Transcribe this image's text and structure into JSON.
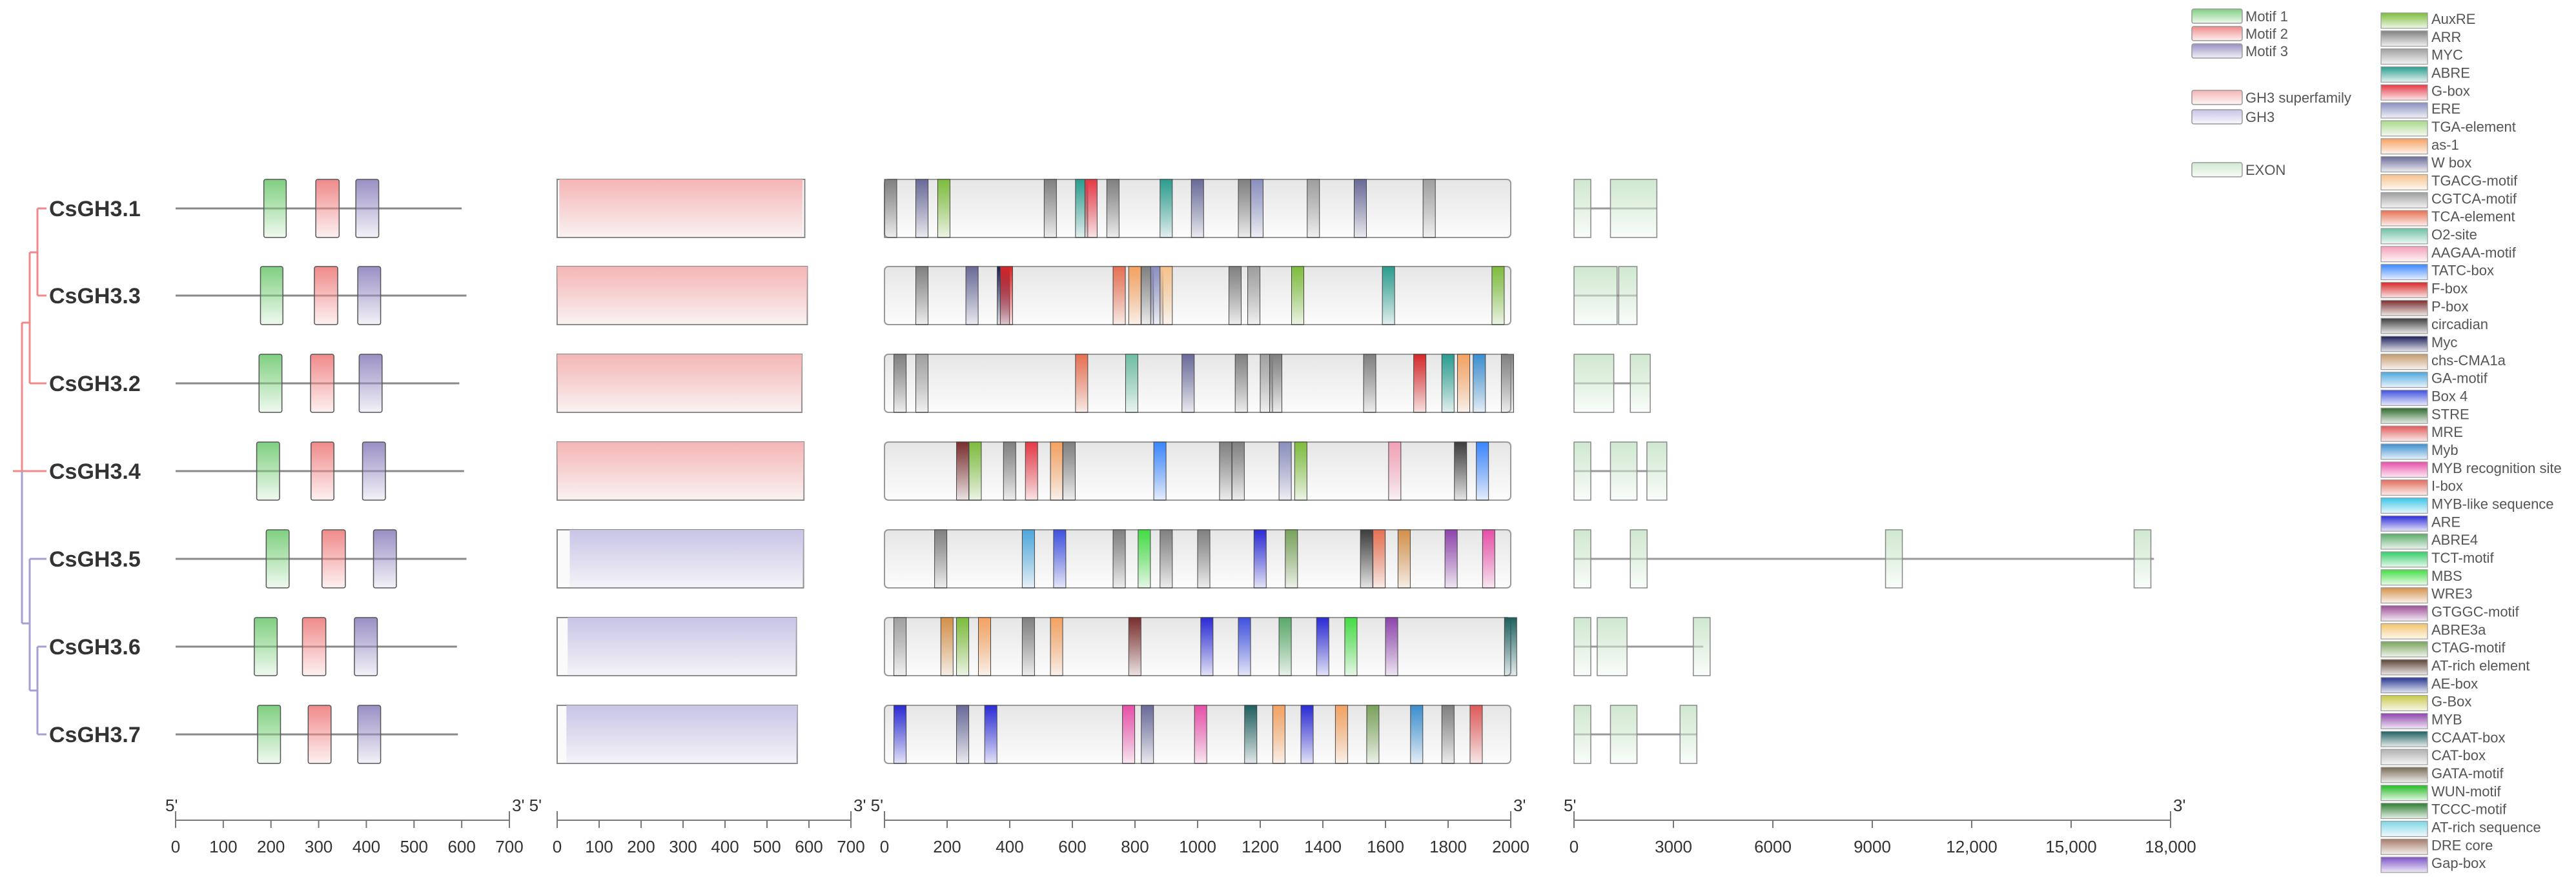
{
  "genes": [
    "CsGH3.1",
    "CsGH3.3",
    "CsGH3.2",
    "CsGH3.4",
    "CsGH3.5",
    "CsGH3.6",
    "CsGH3.7"
  ],
  "motif_legend": [
    {
      "label": "Motif 1",
      "color": "#7fcf7f"
    },
    {
      "label": "Motif 2",
      "color": "#f08a8a"
    },
    {
      "label": "Motif 3",
      "color": "#9a8fc4"
    }
  ],
  "domain_legend": [
    {
      "label": "GH3 superfamily",
      "color": "#f5b5b5"
    },
    {
      "label": "GH3",
      "color": "#c8c4e6"
    }
  ],
  "exon_legend": {
    "label": "EXON",
    "color": "#cfe8cf"
  },
  "element_legend": [
    {
      "label": "AuxRE",
      "color": "#7dbd3c"
    },
    {
      "label": "ARR",
      "color": "#808080"
    },
    {
      "label": "MYC",
      "color": "#a0a0a0"
    },
    {
      "label": "ABRE",
      "color": "#2a9d8f"
    },
    {
      "label": "G-box",
      "color": "#e63946"
    },
    {
      "label": "ERE",
      "color": "#8a8fbf"
    },
    {
      "label": "TGA-element",
      "color": "#a8d88a"
    },
    {
      "label": "as-1",
      "color": "#f4a261"
    },
    {
      "label": "W box",
      "color": "#6a6a9a"
    },
    {
      "label": "TGACG-motif",
      "color": "#f6c28b"
    },
    {
      "label": "CGTCA-motif",
      "color": "#9e9e9e"
    },
    {
      "label": "TCA-element",
      "color": "#e76f51"
    },
    {
      "label": "O2-site",
      "color": "#6fbfa5"
    },
    {
      "label": "AAGAA-motif",
      "color": "#f2a1b8"
    },
    {
      "label": "TATC-box",
      "color": "#3a86ff"
    },
    {
      "label": "F-box",
      "color": "#d62828"
    },
    {
      "label": "P-box",
      "color": "#7a2e2e"
    },
    {
      "label": "circadian",
      "color": "#3d3d3d"
    },
    {
      "label": "Myc",
      "color": "#1d1d5a"
    },
    {
      "label": "chs-CMA1a",
      "color": "#c49a6c"
    },
    {
      "label": "GA-motif",
      "color": "#4ea8de"
    },
    {
      "label": "Box 4",
      "color": "#3f51e0"
    },
    {
      "label": "STRE",
      "color": "#2d6a2d"
    },
    {
      "label": "MRE",
      "color": "#e05a5a"
    },
    {
      "label": "Myb",
      "color": "#3b8fd0"
    },
    {
      "label": "MYB recognition site",
      "color": "#e84fa8"
    },
    {
      "label": "I-box",
      "color": "#e26d5c"
    },
    {
      "label": "MYB-like sequence",
      "color": "#3cc6e8"
    },
    {
      "label": "ARE",
      "color": "#2b2bd6"
    },
    {
      "label": "ABRE4",
      "color": "#5aaa6a"
    },
    {
      "label": "TCT-motif",
      "color": "#33cc66"
    },
    {
      "label": "MBS",
      "color": "#44dd44"
    },
    {
      "label": "WRE3",
      "color": "#d4914a"
    },
    {
      "label": "GTGGC-motif",
      "color": "#9c4f96"
    },
    {
      "label": "ABRE3a",
      "color": "#f2c46d"
    },
    {
      "label": "CTAG-motif",
      "color": "#7aa35a"
    },
    {
      "label": "AT-rich element",
      "color": "#5c4033"
    },
    {
      "label": "AE-box",
      "color": "#24348f"
    },
    {
      "label": "G-Box",
      "color": "#c8c84a"
    },
    {
      "label": "MYB",
      "color": "#8e44ad"
    },
    {
      "label": "CCAAT-box",
      "color": "#1f5f5f"
    },
    {
      "label": "CAT-box",
      "color": "#b0b0b0"
    },
    {
      "label": "GATA-motif",
      "color": "#7a6a55"
    },
    {
      "label": "WUN-motif",
      "color": "#22bb22"
    },
    {
      "label": "TCCC-motif",
      "color": "#2e7d32"
    },
    {
      "label": "AT-rich sequence",
      "color": "#7fd6e6"
    },
    {
      "label": "DRE core",
      "color": "#a67c6a"
    },
    {
      "label": "Gap-box",
      "color": "#7b52c7"
    }
  ],
  "axes": {
    "five_prime": "5'",
    "three_prime": "3'",
    "five_prime_joined": "3' 5'",
    "motif_ticks": [
      "0",
      "100",
      "200",
      "300",
      "400",
      "500",
      "600",
      "700"
    ],
    "protein_ticks": [
      "0",
      "100",
      "200",
      "300",
      "400",
      "500",
      "600",
      "700"
    ],
    "promoter_ticks": [
      "0",
      "200",
      "400",
      "600",
      "800",
      "1000",
      "1200",
      "1400",
      "1600",
      "1800",
      "2000"
    ],
    "gene_ticks": [
      "0",
      "3000",
      "6000",
      "9000",
      "12,000",
      "15,000",
      "18,000"
    ]
  },
  "motif_structures": {
    "CsGH3.1": {
      "length": 600,
      "motifs": [
        {
          "m": 1,
          "start": 185,
          "end": 232
        },
        {
          "m": 2,
          "start": 294,
          "end": 343
        },
        {
          "m": 3,
          "start": 378,
          "end": 426
        }
      ]
    },
    "CsGH3.3": {
      "length": 610,
      "motifs": [
        {
          "m": 1,
          "start": 178,
          "end": 225
        },
        {
          "m": 2,
          "start": 291,
          "end": 340
        },
        {
          "m": 3,
          "start": 382,
          "end": 430
        }
      ]
    },
    "CsGH3.2": {
      "length": 595,
      "motifs": [
        {
          "m": 1,
          "start": 175,
          "end": 223
        },
        {
          "m": 2,
          "start": 283,
          "end": 332
        },
        {
          "m": 3,
          "start": 385,
          "end": 433
        }
      ]
    },
    "CsGH3.4": {
      "length": 605,
      "motifs": [
        {
          "m": 1,
          "start": 170,
          "end": 218
        },
        {
          "m": 2,
          "start": 284,
          "end": 332
        },
        {
          "m": 3,
          "start": 392,
          "end": 440
        }
      ]
    },
    "CsGH3.5": {
      "length": 610,
      "motifs": [
        {
          "m": 1,
          "start": 190,
          "end": 238
        },
        {
          "m": 2,
          "start": 307,
          "end": 356
        },
        {
          "m": 3,
          "start": 415,
          "end": 463
        }
      ]
    },
    "CsGH3.6": {
      "length": 590,
      "motifs": [
        {
          "m": 1,
          "start": 165,
          "end": 213
        },
        {
          "m": 2,
          "start": 266,
          "end": 315
        },
        {
          "m": 3,
          "start": 375,
          "end": 423
        }
      ]
    },
    "CsGH3.7": {
      "length": 592,
      "motifs": [
        {
          "m": 1,
          "start": 172,
          "end": 220
        },
        {
          "m": 2,
          "start": 278,
          "end": 326
        },
        {
          "m": 3,
          "start": 382,
          "end": 430
        }
      ]
    }
  },
  "protein_domains": {
    "CsGH3.1": {
      "length": 590,
      "domain": "GH3 superfamily",
      "start": 5,
      "end": 585
    },
    "CsGH3.3": {
      "length": 596,
      "domain": "GH3 superfamily",
      "start": 0,
      "end": 596
    },
    "CsGH3.2": {
      "length": 583,
      "domain": "GH3 superfamily",
      "start": 0,
      "end": 583
    },
    "CsGH3.4": {
      "length": 588,
      "domain": "GH3 superfamily",
      "start": 0,
      "end": 588
    },
    "CsGH3.5": {
      "length": 587,
      "domain": "GH3",
      "start": 30,
      "end": 587
    },
    "CsGH3.6": {
      "length": 570,
      "domain": "GH3",
      "start": 25,
      "end": 570
    },
    "CsGH3.7": {
      "length": 572,
      "domain": "GH3",
      "start": 22,
      "end": 572
    }
  },
  "promoter_elements": {
    "CsGH3.1": [
      [
        0,
        "ARR"
      ],
      [
        100,
        "W box"
      ],
      [
        170,
        "AuxRE"
      ],
      [
        510,
        "ARR"
      ],
      [
        610,
        "ABRE"
      ],
      [
        640,
        "G-box"
      ],
      [
        710,
        "ARR"
      ],
      [
        880,
        "ABRE"
      ],
      [
        980,
        "W box"
      ],
      [
        1130,
        "ARR"
      ],
      [
        1170,
        "ERE"
      ],
      [
        1350,
        "CGTCA-motif"
      ],
      [
        1500,
        "W box"
      ],
      [
        1720,
        "MYC"
      ]
    ],
    "CsGH3.3": [
      [
        100,
        "ARR"
      ],
      [
        260,
        "W box"
      ],
      [
        360,
        "Myc"
      ],
      [
        370,
        "F-box"
      ],
      [
        730,
        "TCA-element"
      ],
      [
        780,
        "as-1"
      ],
      [
        820,
        "ARR"
      ],
      [
        850,
        "ERE"
      ],
      [
        880,
        "TGACG-motif"
      ],
      [
        1100,
        "ARR"
      ],
      [
        1160,
        "CGTCA-motif"
      ],
      [
        1300,
        "AuxRE"
      ],
      [
        1590,
        "ABRE"
      ],
      [
        1940,
        "AuxRE"
      ]
    ],
    "CsGH3.2": [
      [
        30,
        "ARR"
      ],
      [
        100,
        "MYC"
      ],
      [
        610,
        "TCA-element"
      ],
      [
        770,
        "O2-site"
      ],
      [
        950,
        "W box"
      ],
      [
        1120,
        "ARR"
      ],
      [
        1200,
        "MYC"
      ],
      [
        1230,
        "ARR"
      ],
      [
        1530,
        "ARR"
      ],
      [
        1690,
        "F-box"
      ],
      [
        1780,
        "ABRE"
      ],
      [
        1830,
        "as-1"
      ],
      [
        1880,
        "Myb"
      ],
      [
        1970,
        "ARR"
      ]
    ],
    "CsGH3.4": [
      [
        230,
        "P-box"
      ],
      [
        270,
        "AuxRE"
      ],
      [
        380,
        "ARR"
      ],
      [
        450,
        "G-box"
      ],
      [
        530,
        "as-1"
      ],
      [
        570,
        "ARR"
      ],
      [
        860,
        "TATC-box"
      ],
      [
        1070,
        "ARR"
      ],
      [
        1110,
        "ARR"
      ],
      [
        1260,
        "ERE"
      ],
      [
        1310,
        "AuxRE"
      ],
      [
        1610,
        "AAGAA-motif"
      ],
      [
        1820,
        "circadian"
      ],
      [
        1890,
        "TATC-box"
      ]
    ],
    "CsGH3.5": [
      [
        160,
        "ARR"
      ],
      [
        440,
        "GA-motif"
      ],
      [
        540,
        "Box 4"
      ],
      [
        730,
        "ARR"
      ],
      [
        810,
        "MBS"
      ],
      [
        880,
        "ARR"
      ],
      [
        1000,
        "ARR"
      ],
      [
        1180,
        "ARE"
      ],
      [
        1280,
        "CTAG-motif"
      ],
      [
        1520,
        "circadian"
      ],
      [
        1560,
        "TCA-element"
      ],
      [
        1640,
        "WRE3"
      ],
      [
        1790,
        "MYB"
      ],
      [
        1910,
        "MYB recognition site"
      ]
    ],
    "CsGH3.6": [
      [
        30,
        "MYC"
      ],
      [
        180,
        "WRE3"
      ],
      [
        230,
        "AuxRE"
      ],
      [
        300,
        "as-1"
      ],
      [
        440,
        "ARR"
      ],
      [
        530,
        "as-1"
      ],
      [
        780,
        "P-box"
      ],
      [
        1010,
        "ARE"
      ],
      [
        1130,
        "Box 4"
      ],
      [
        1260,
        "ABRE4"
      ],
      [
        1380,
        "ARE"
      ],
      [
        1470,
        "MBS"
      ],
      [
        1600,
        "MYB"
      ],
      [
        1980,
        "CCAAT-box"
      ]
    ],
    "CsGH3.7": [
      [
        30,
        "ARE"
      ],
      [
        230,
        "W box"
      ],
      [
        320,
        "ARE"
      ],
      [
        760,
        "MYB recognition site"
      ],
      [
        820,
        "W box"
      ],
      [
        990,
        "MYB recognition site"
      ],
      [
        1150,
        "CCAAT-box"
      ],
      [
        1240,
        "as-1"
      ],
      [
        1330,
        "ARE"
      ],
      [
        1440,
        "as-1"
      ],
      [
        1540,
        "CTAG-motif"
      ],
      [
        1680,
        "Myb"
      ],
      [
        1780,
        "ARR"
      ],
      [
        1870,
        "MRE"
      ]
    ]
  },
  "gene_structures": {
    "CsGH3.1": {
      "length": 2500,
      "exons": [
        [
          0,
          300
        ],
        [
          1100,
          2500
        ]
      ]
    },
    "CsGH3.3": {
      "length": 1900,
      "exons": [
        [
          0,
          1300
        ],
        [
          1350,
          1900
        ]
      ]
    },
    "CsGH3.2": {
      "length": 2300,
      "exons": [
        [
          0,
          1200
        ],
        [
          1700,
          2300
        ]
      ]
    },
    "CsGH3.4": {
      "length": 2800,
      "exons": [
        [
          0,
          300
        ],
        [
          1100,
          1900
        ],
        [
          2200,
          2800
        ]
      ]
    },
    "CsGH3.5": {
      "length": 17500,
      "exons": [
        [
          0,
          450
        ],
        [
          1700,
          2100
        ],
        [
          9400,
          9900
        ],
        [
          16900,
          17400
        ]
      ]
    },
    "CsGH3.6": {
      "length": 3900,
      "exons": [
        [
          0,
          300
        ],
        [
          700,
          1600
        ],
        [
          3600,
          3900
        ]
      ]
    },
    "CsGH3.7": {
      "length": 3700,
      "exons": [
        [
          0,
          300
        ],
        [
          1100,
          1900
        ],
        [
          3200,
          3700
        ]
      ]
    }
  }
}
